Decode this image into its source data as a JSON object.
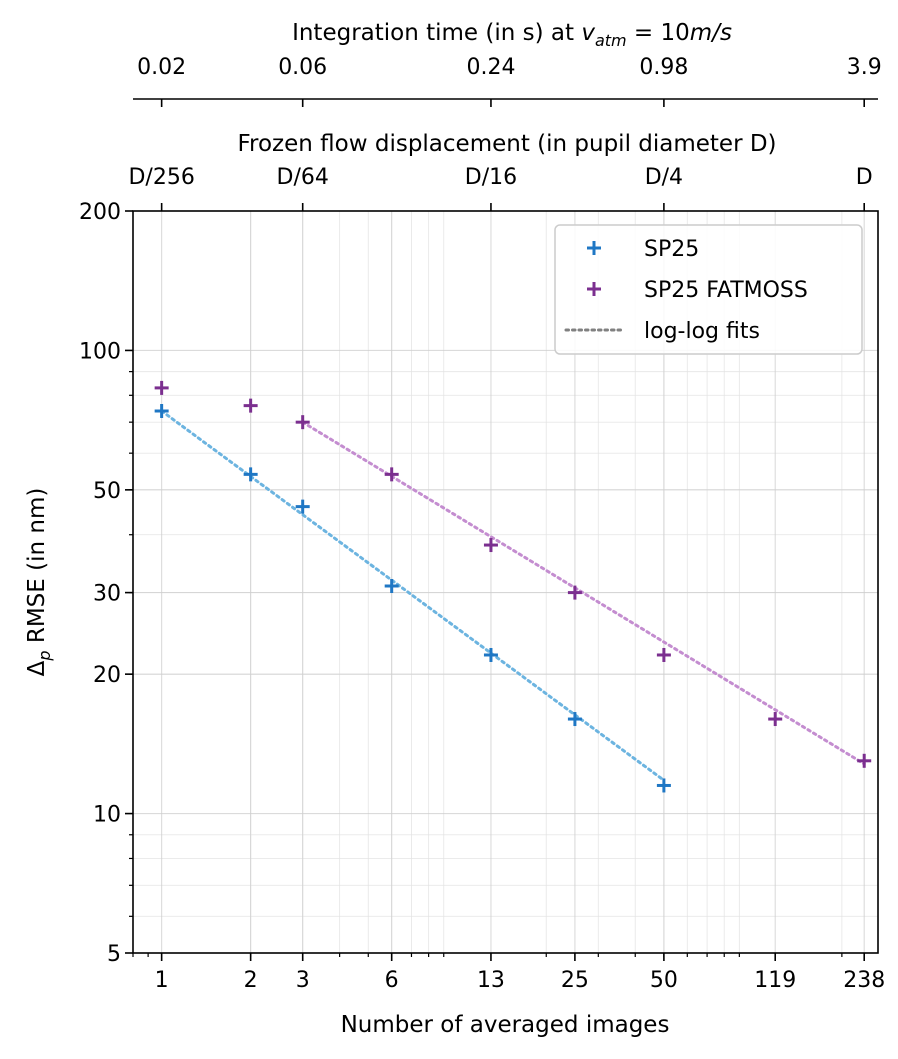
{
  "chart_data": {
    "type": "scatter",
    "title": "",
    "top_axis_1": {
      "label_prefix": "Integration time (in s) at ",
      "label_var": "v",
      "label_sub": "atm",
      "label_suffix_eq": " = 10",
      "label_unit": "m/s",
      "ticks": [
        {
          "x": 1,
          "label": "0.02"
        },
        {
          "x": 3,
          "label": "0.06"
        },
        {
          "x": 13,
          "label": "0.24"
        },
        {
          "x": 50,
          "label": "0.98"
        },
        {
          "x": 238,
          "label": "3.9"
        }
      ]
    },
    "top_axis_2": {
      "label": "Frozen flow displacement (in pupil diameter D)",
      "ticks": [
        {
          "x": 1,
          "label": "D/256"
        },
        {
          "x": 3,
          "label": "D/64"
        },
        {
          "x": 13,
          "label": "D/16"
        },
        {
          "x": 50,
          "label": "D/4"
        },
        {
          "x": 238,
          "label": "D"
        }
      ]
    },
    "x_axis": {
      "label": "Number of averaged images",
      "scale": "log",
      "range": [
        0.8,
        265
      ],
      "ticks": [
        {
          "x": 1,
          "label": "1"
        },
        {
          "x": 2,
          "label": "2"
        },
        {
          "x": 3,
          "label": "3"
        },
        {
          "x": 6,
          "label": "6"
        },
        {
          "x": 13,
          "label": "13"
        },
        {
          "x": 25,
          "label": "25"
        },
        {
          "x": 50,
          "label": "50"
        },
        {
          "x": 119,
          "label": "119"
        },
        {
          "x": 238,
          "label": "238"
        }
      ],
      "minor_gridlines": [
        2,
        3,
        4,
        5,
        6,
        7,
        8,
        9,
        20,
        30,
        40,
        50,
        60,
        70,
        80,
        90,
        200
      ]
    },
    "y_axis": {
      "label_delta": "Δ",
      "label_sub": "p",
      "label_rest": " RMSE (in nm)",
      "scale": "log",
      "range": [
        5,
        200
      ],
      "ticks": [
        {
          "y": 5,
          "label": "5"
        },
        {
          "y": 10,
          "label": "10"
        },
        {
          "y": 20,
          "label": "20"
        },
        {
          "y": 30,
          "label": "30"
        },
        {
          "y": 50,
          "label": "50"
        },
        {
          "y": 100,
          "label": "100"
        },
        {
          "y": 200,
          "label": "200"
        }
      ],
      "minor_gridlines": [
        6,
        7,
        8,
        9,
        20,
        30,
        40,
        50,
        60,
        70,
        80,
        90
      ]
    },
    "series": [
      {
        "name": "SP25",
        "color": "#1f77c4",
        "marker": "+",
        "x": [
          1,
          2,
          3,
          6,
          13,
          25,
          50
        ],
        "y": [
          74,
          54,
          46,
          31,
          22,
          16,
          11.5
        ]
      },
      {
        "name": "SP25 FATMOSS",
        "color": "#7b2f8f",
        "marker": "+",
        "x": [
          1,
          2,
          3,
          6,
          13,
          25,
          50,
          119,
          238
        ],
        "y": [
          83,
          76,
          70,
          54,
          38,
          30,
          22,
          16,
          13
        ]
      }
    ],
    "fits": [
      {
        "name": "SP25 fit",
        "color": "#6cb4e0",
        "x": [
          1,
          50
        ],
        "y": [
          74,
          11.8
        ]
      },
      {
        "name": "SP25 FATMOSS fit",
        "color": "#c48dd0",
        "x": [
          3,
          238
        ],
        "y": [
          70,
          12.8
        ]
      }
    ],
    "legend": {
      "position": "top-right",
      "entries": [
        {
          "label": "SP25",
          "kind": "marker",
          "color": "#1f77c4"
        },
        {
          "label": "SP25 FATMOSS",
          "kind": "marker",
          "color": "#7b2f8f"
        },
        {
          "label": "log-log fits",
          "kind": "line",
          "color": "#808080"
        }
      ]
    }
  }
}
